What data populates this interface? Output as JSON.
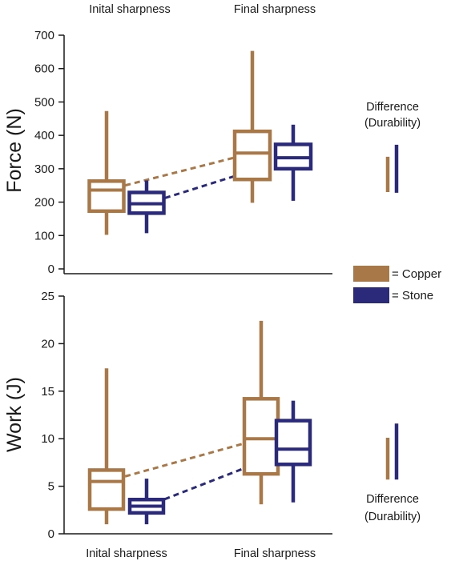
{
  "colors": {
    "copper": "#A87848",
    "stone": "#2B2A7A",
    "axis": "#1a1a1a"
  },
  "legend": {
    "copper_label": "= Copper",
    "stone_label": "= Stone"
  },
  "chart_data": [
    {
      "type": "box",
      "ylabel": "Force (N)",
      "ylim": [
        0,
        700
      ],
      "yticks": [
        "0",
        "100",
        "200",
        "300",
        "400",
        "500",
        "600",
        "700"
      ],
      "categories": [
        "Inital sharpness",
        "Final sharpness"
      ],
      "category_labels_position": "top",
      "series": [
        {
          "name": "Copper",
          "boxes": [
            {
              "min": 102,
              "q1": 173,
              "median": 236,
              "q3": 263,
              "max": 473
            },
            {
              "min": 198,
              "q1": 268,
              "median": 347,
              "q3": 412,
              "max": 653
            }
          ]
        },
        {
          "name": "Stone",
          "boxes": [
            {
              "min": 107,
              "q1": 167,
              "median": 195,
              "q3": 229,
              "max": 265
            },
            {
              "min": 204,
              "q1": 300,
              "median": 333,
              "q3": 373,
              "max": 432
            }
          ]
        }
      ],
      "difference": {
        "label_line1": "Difference",
        "label_line2": "(Durability)",
        "label_position": "top",
        "copper": [
          230,
          336
        ],
        "stone": [
          228,
          372
        ]
      }
    },
    {
      "type": "box",
      "ylabel": "Work (J)",
      "ylim": [
        0,
        25
      ],
      "yticks": [
        "0",
        "5",
        "10",
        "15",
        "20",
        "25"
      ],
      "categories": [
        "Inital sharpness",
        "Final sharpness"
      ],
      "category_labels_position": "bottom",
      "series": [
        {
          "name": "Copper",
          "boxes": [
            {
              "min": 1.0,
              "q1": 2.6,
              "median": 5.5,
              "q3": 6.7,
              "max": 17.4
            },
            {
              "min": 3.1,
              "q1": 6.3,
              "median": 10.0,
              "q3": 14.2,
              "max": 22.4
            }
          ]
        },
        {
          "name": "Stone",
          "boxes": [
            {
              "min": 1.0,
              "q1": 2.2,
              "median": 2.9,
              "q3": 3.6,
              "max": 5.8
            },
            {
              "min": 3.3,
              "q1": 7.3,
              "median": 8.9,
              "q3": 11.9,
              "max": 14.0
            }
          ]
        }
      ],
      "difference": {
        "label_line1": "Difference",
        "label_line2": "(Durability)",
        "label_position": "bottom",
        "copper": [
          5.7,
          10.1
        ],
        "stone": [
          5.7,
          11.6
        ]
      }
    }
  ]
}
